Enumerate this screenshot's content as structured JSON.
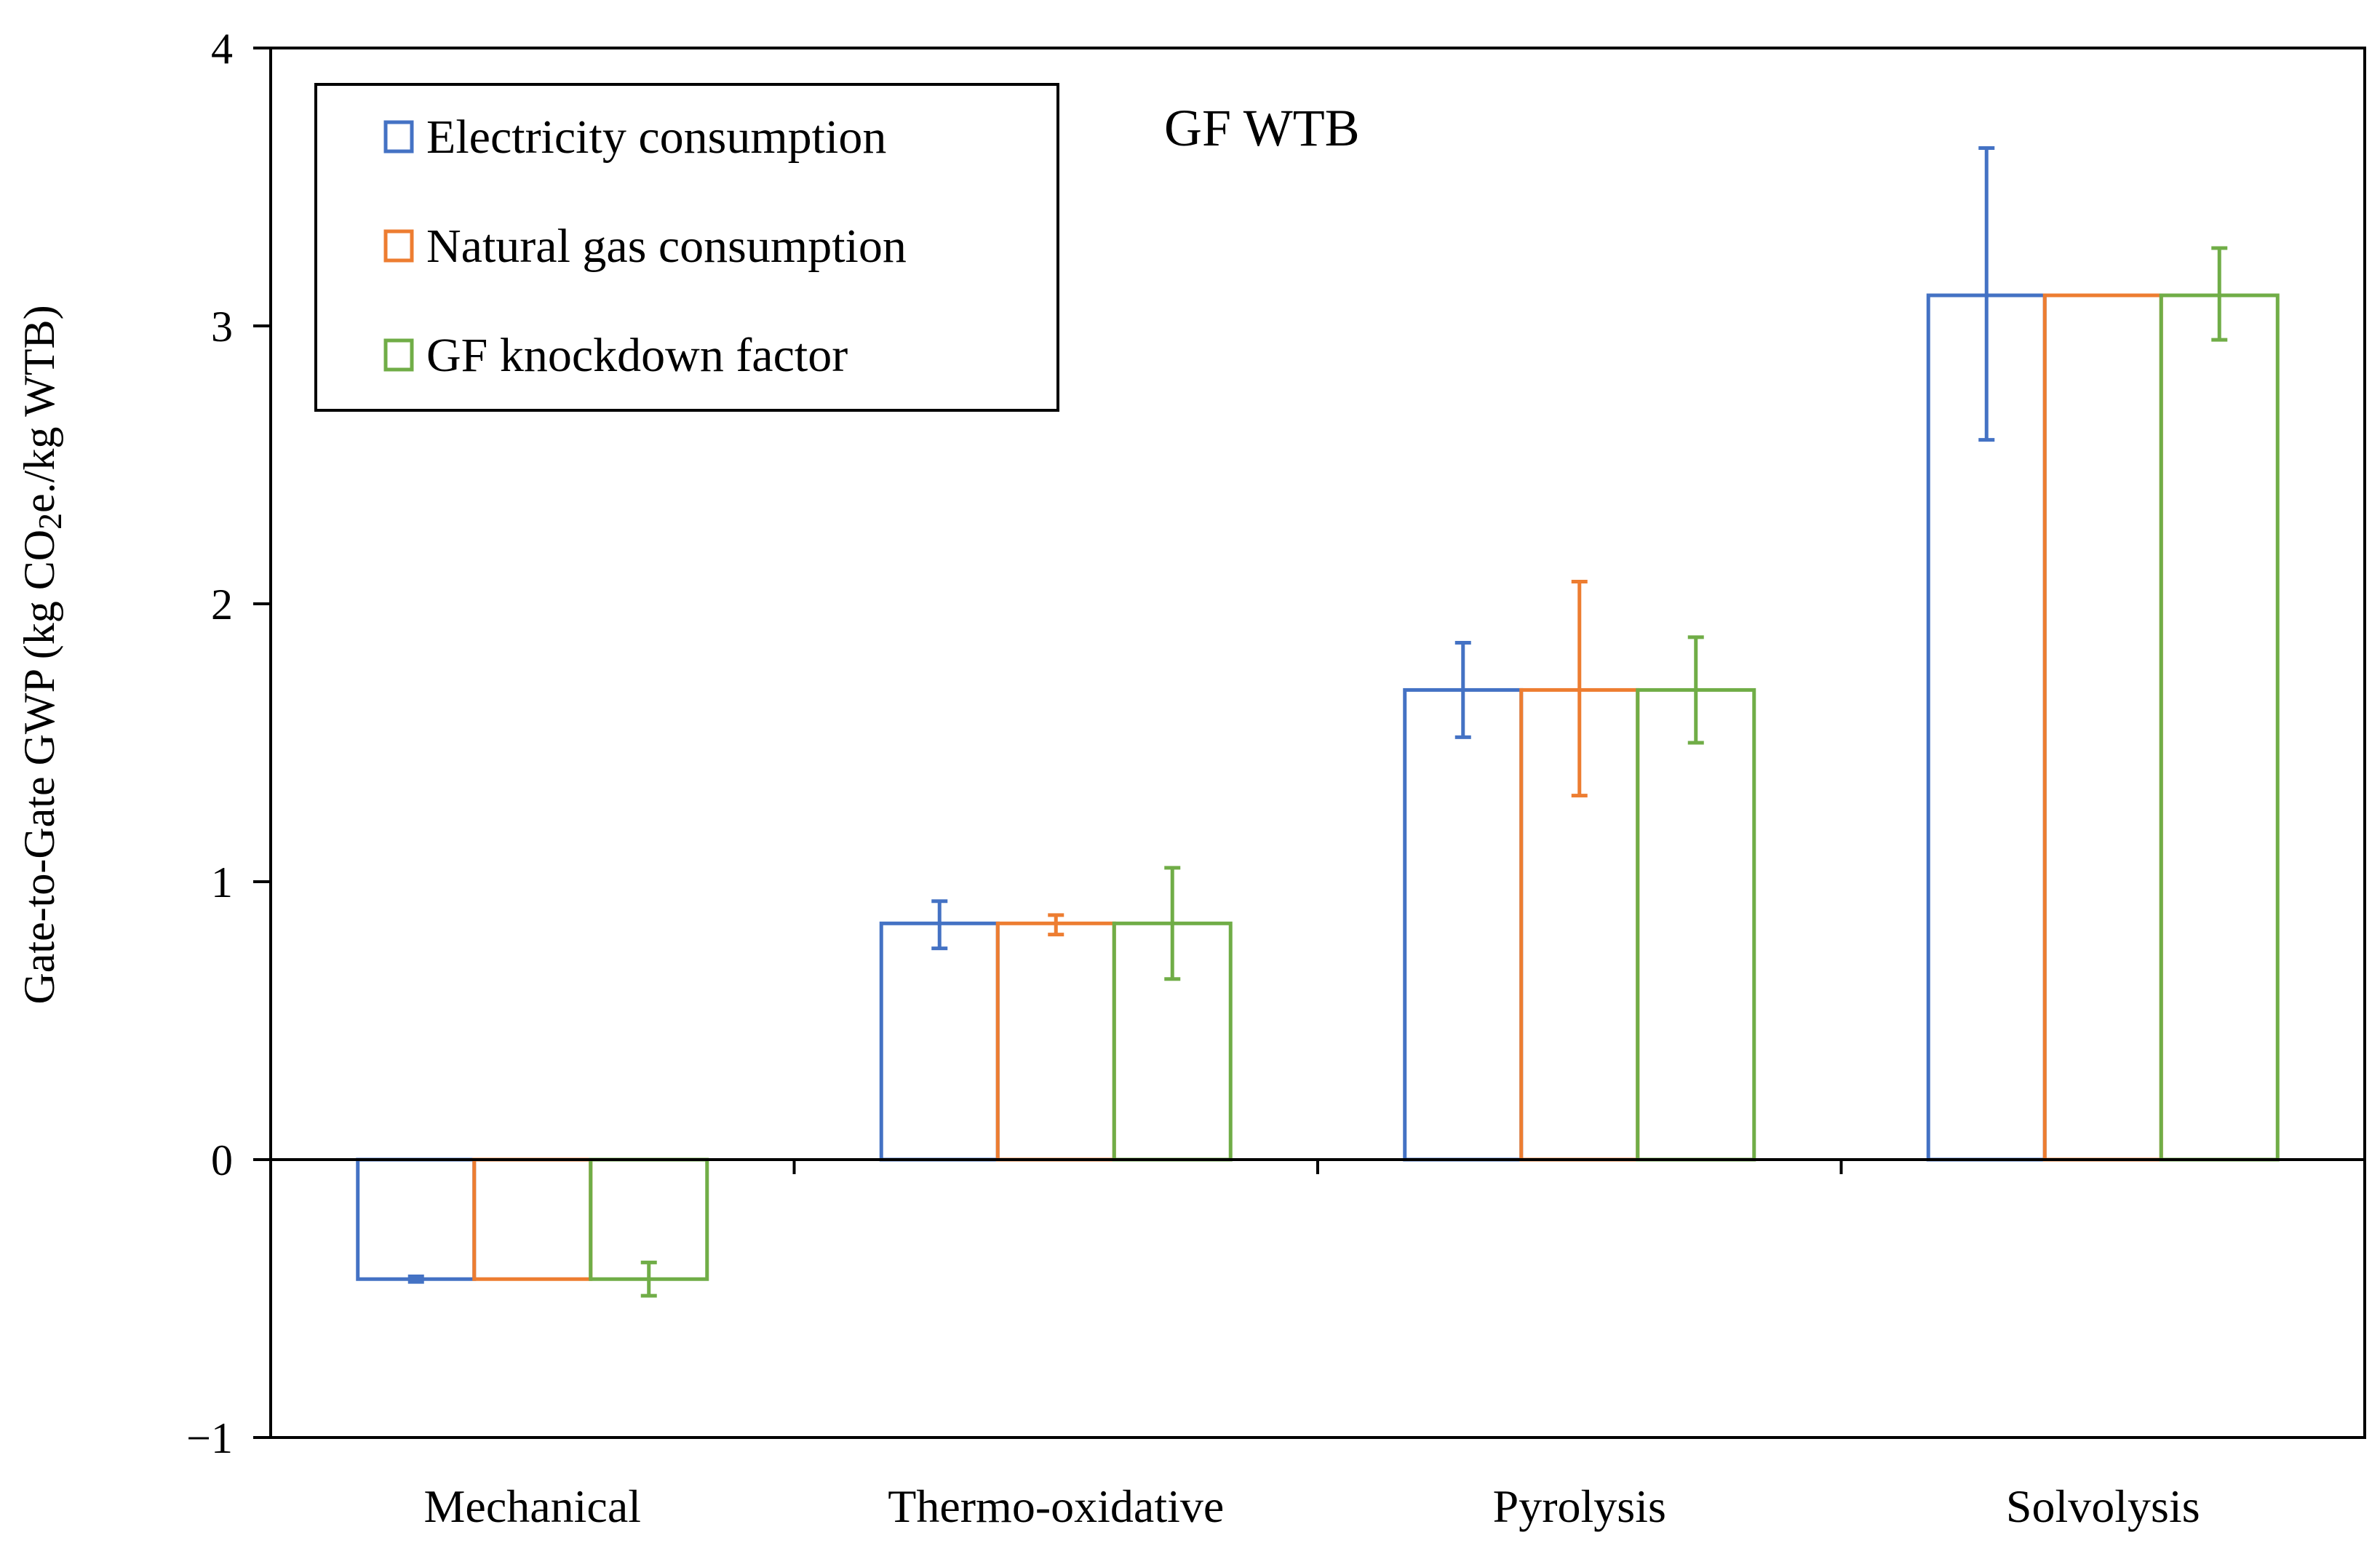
{
  "chart_data": {
    "type": "bar",
    "title": "",
    "annotation": "GF WTB",
    "xlabel": "",
    "ylabel": {
      "prefix": "Gate-to-Gate GWP (kg CO",
      "subscript": "2",
      "suffix": "e./kg WTB)"
    },
    "ylim": [
      -1,
      4
    ],
    "yticks": [
      -1,
      0,
      1,
      2,
      3,
      4
    ],
    "ytick_labels": [
      "−1",
      "0",
      "1",
      "2",
      "3",
      "4"
    ],
    "categories": [
      "Mechanical",
      "Thermo-oxidative",
      "Pyrolysis",
      "Solvolysis"
    ],
    "series": [
      {
        "name": "Electricity consumption",
        "color": "#4472C4",
        "values": [
          -0.43,
          0.85,
          1.69,
          3.11
        ],
        "error_low": [
          -0.44,
          0.76,
          1.52,
          2.59
        ],
        "error_high": [
          -0.42,
          0.93,
          1.86,
          3.64
        ]
      },
      {
        "name": "Natural gas consumption",
        "color": "#ED7D31",
        "values": [
          -0.43,
          0.85,
          1.69,
          3.11
        ],
        "error_low": null,
        "error_high": null,
        "error_low_values": [
          -0.43,
          0.81,
          1.31,
          3.11
        ],
        "error_high_values": [
          -0.43,
          0.88,
          2.08,
          3.11
        ]
      },
      {
        "name": "GF knockdown factor",
        "color": "#70AD47",
        "values": [
          -0.43,
          0.85,
          1.69,
          3.11
        ],
        "error_low": [
          -0.49,
          0.65,
          1.5,
          2.95
        ],
        "error_high": [
          -0.37,
          1.05,
          1.88,
          3.28
        ]
      }
    ],
    "error_caps": [
      [
        true,
        true,
        true,
        false
      ],
      [
        false,
        true,
        true,
        false
      ],
      [
        true,
        true,
        true,
        true
      ]
    ],
    "legend_position": "top-left",
    "grid": false
  }
}
